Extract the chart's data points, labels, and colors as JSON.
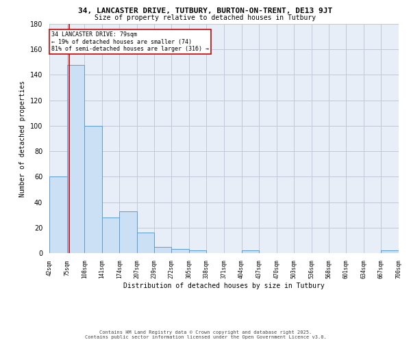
{
  "title1": "34, LANCASTER DRIVE, TUTBURY, BURTON-ON-TRENT, DE13 9JT",
  "title2": "Size of property relative to detached houses in Tutbury",
  "xlabel": "Distribution of detached houses by size in Tutbury",
  "ylabel": "Number of detached properties",
  "bar_color": "#cce0f5",
  "bar_edge_color": "#5b9bd5",
  "grid_color": "#c0c8d8",
  "background_color": "#e8eef8",
  "vline_color": "#cc0000",
  "vline_x": 79,
  "bin_edges": [
    42,
    75,
    108,
    141,
    174,
    207,
    239,
    272,
    305,
    338,
    371,
    404,
    437,
    470,
    503,
    536,
    568,
    601,
    634,
    667,
    700
  ],
  "bin_heights": [
    60,
    148,
    100,
    28,
    33,
    16,
    5,
    3,
    2,
    0,
    0,
    2,
    0,
    0,
    0,
    0,
    0,
    0,
    0,
    2
  ],
  "tick_labels": [
    "42sqm",
    "75sqm",
    "108sqm",
    "141sqm",
    "174sqm",
    "207sqm",
    "239sqm",
    "272sqm",
    "305sqm",
    "338sqm",
    "371sqm",
    "404sqm",
    "437sqm",
    "470sqm",
    "503sqm",
    "536sqm",
    "568sqm",
    "601sqm",
    "634sqm",
    "667sqm",
    "700sqm"
  ],
  "annotation_text": "34 LANCASTER DRIVE: 79sqm\n← 19% of detached houses are smaller (74)\n81% of semi-detached houses are larger (316) →",
  "annotation_box_color": "#ffffff",
  "annotation_box_edge": "#cc0000",
  "ylim": [
    0,
    180
  ],
  "yticks": [
    0,
    20,
    40,
    60,
    80,
    100,
    120,
    140,
    160,
    180
  ],
  "footer1": "Contains HM Land Registry data © Crown copyright and database right 2025.",
  "footer2": "Contains public sector information licensed under the Open Government Licence v3.0."
}
